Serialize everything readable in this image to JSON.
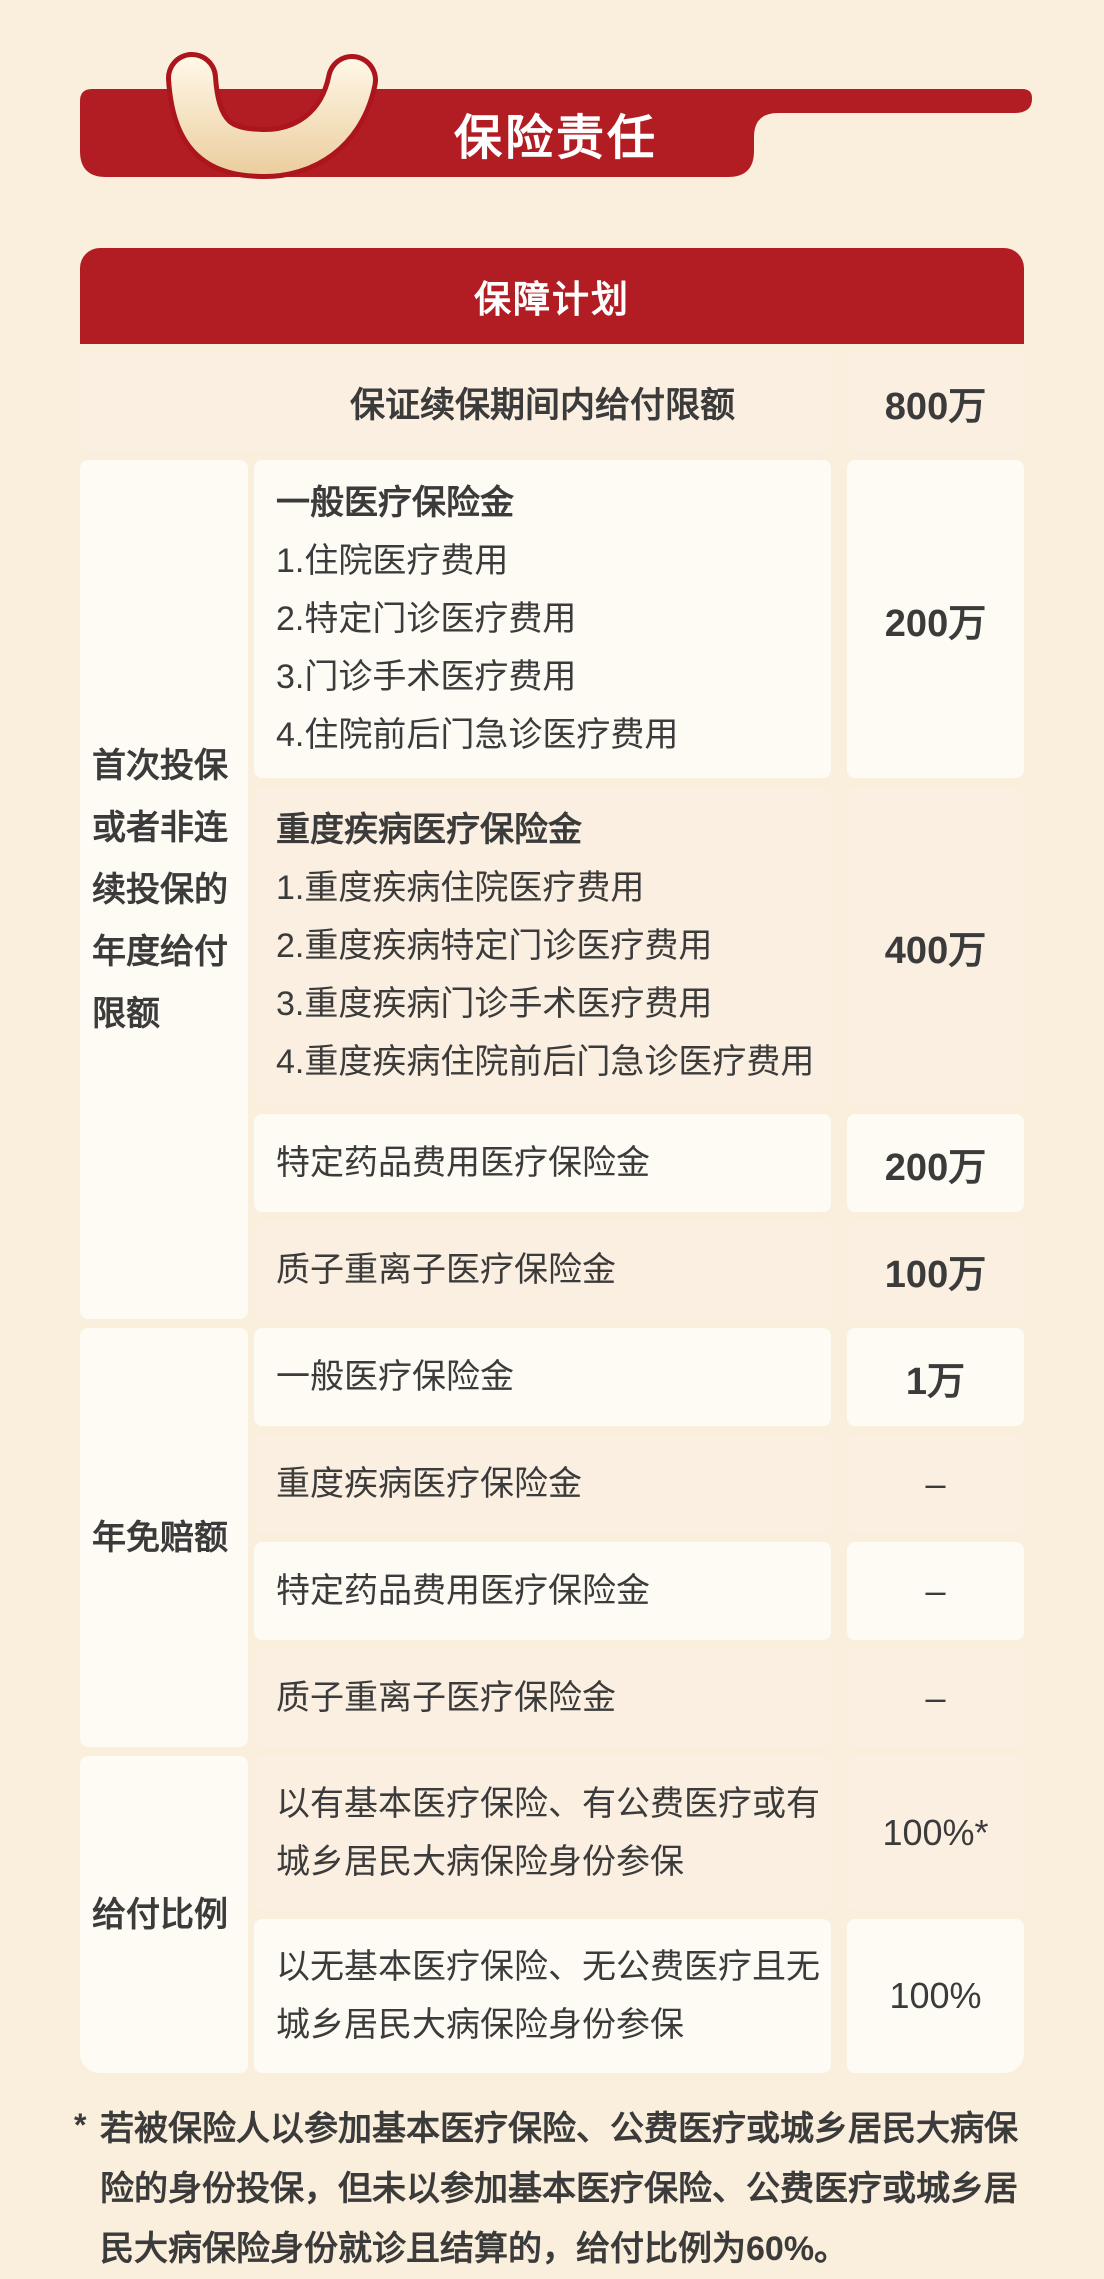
{
  "banner": {
    "title": "保险责任"
  },
  "colors": {
    "red": "#B21D23",
    "page_bg": "#FAEEDC",
    "row_light": "#FEFBF4",
    "row_pink": "#FBEFE1",
    "handle_outline": "#AC151B",
    "handle_fill_top": "#FFF8E8",
    "handle_fill_bottom": "#EBCD9D",
    "text": "#3B3B3B"
  },
  "table": {
    "header": "保障计划",
    "row_limit": {
      "label": "保证续保期间内给付限额",
      "value": "800万",
      "tone": "pink",
      "value_bold": true
    },
    "groups": [
      {
        "label": "首次投保或者非连续投保的年度给付限额",
        "rows": [
          {
            "title": "一般医疗保险金",
            "items": [
              "1.住院医疗费用",
              "2.特定门诊医疗费用",
              "3.门诊手术医疗费用",
              "4.住院前后门急诊医疗费用"
            ],
            "value": "200万",
            "tone": "light",
            "value_bold": true
          },
          {
            "title": "重度疾病医疗保险金",
            "items": [
              "1.重度疾病住院医疗费用",
              "2.重度疾病特定门诊医疗费用",
              "3.重度疾病门诊手术医疗费用",
              "4.重度疾病住院前后门急诊医疗费用"
            ],
            "value": "400万",
            "tone": "pink",
            "value_bold": true
          },
          {
            "text": "特定药品费用医疗保险金",
            "value": "200万",
            "tone": "light",
            "value_bold": true
          },
          {
            "text": "质子重离子医疗保险金",
            "value": "100万",
            "tone": "pink",
            "value_bold": true
          }
        ]
      },
      {
        "label": "年免赔额",
        "rows": [
          {
            "text": "一般医疗保险金",
            "value": "1万",
            "tone": "light",
            "value_bold": true
          },
          {
            "text": "重度疾病医疗保险金",
            "value": "–",
            "tone": "pink",
            "value_bold": false
          },
          {
            "text": "特定药品费用医疗保险金",
            "value": "–",
            "tone": "light",
            "value_bold": false
          },
          {
            "text": "质子重离子医疗保险金",
            "value": "–",
            "tone": "pink",
            "value_bold": false
          }
        ]
      },
      {
        "label": "给付比例",
        "rows": [
          {
            "text": "以有基本医疗保险、有公费医疗或有城乡居民大病保险身份参保",
            "value": "100%*",
            "tone": "pink",
            "value_bold": false,
            "tall": true
          },
          {
            "text": "以无基本医疗保险、无公费医疗且无城乡居民大病保险身份参保",
            "value": "100%",
            "tone": "light",
            "value_bold": false,
            "tall": true
          }
        ]
      }
    ]
  },
  "footnote": {
    "marker": "*",
    "text": "若被保险人以参加基本医疗保险、公费医疗或城乡居民大病保险的身份投保，但未以参加基本医疗保险、公费医疗或城乡居民大病保险身份就诊且结算的，给付比例为60%。"
  }
}
